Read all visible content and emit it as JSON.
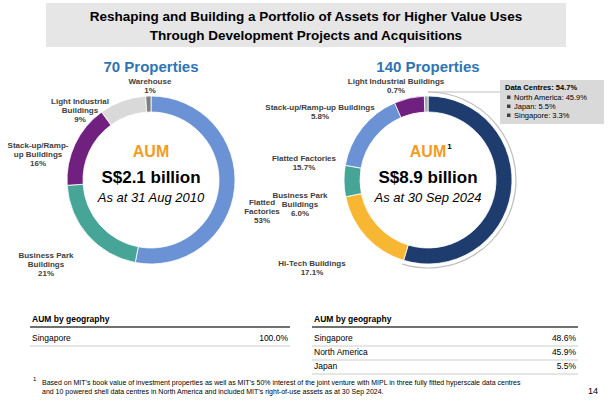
{
  "slide_title": [
    "Reshaping and Building a Portfolio of Assets for Higher Value Uses",
    "Through Development Projects and Acquisitions"
  ],
  "chart_data": [
    {
      "type": "donut",
      "title": "70 Properties",
      "center_title": "AUM",
      "center_value": "S$2.1 billion",
      "center_subtitle": "As at 31 Aug 2010",
      "categories": [
        "Flatted\nFactories",
        "Business Park\nBuildings",
        "Stack-up/Ramp-\nup Buildings",
        "Light Industrial\nBuildings",
        "Warehouse"
      ],
      "values": [
        53,
        21,
        16,
        9,
        1
      ],
      "value_labels": [
        "53%",
        "21%",
        "16%",
        "9%",
        "1%"
      ],
      "colors": [
        "#6b92d4",
        "#46a597",
        "#70217f",
        "#d9d9d9",
        "#7f7f7f"
      ],
      "data_labels": true
    },
    {
      "type": "donut",
      "title": "140 Properties",
      "center_title": "AUM",
      "center_title_note": "1",
      "center_value": "S$8.9 billion",
      "center_subtitle": "As at 30 Sep 2024",
      "categories": [
        null,
        "Hi-Tech Buildings",
        "Business Park\nBuildings",
        "Flatted Factories",
        "Stack-up/Ramp-up Buildings",
        "Light Industrial Buildings"
      ],
      "values": [
        54.7,
        17.1,
        6.0,
        15.7,
        5.8,
        0.7
      ],
      "value_labels": [
        null,
        "17.1%",
        "6.0%",
        "15.7%",
        "5.8%",
        "0.7%"
      ],
      "colors": [
        "#1f3c6e",
        "#f8b733",
        "#46a597",
        "#6b92d4",
        "#70217f",
        "#a6a6a6"
      ],
      "data_labels": true,
      "callout": {
        "title": "Data Centres: 54.7%",
        "items": [
          "North America: 45.9%",
          "Japan: 5.5%",
          "Singapore: 3.3%"
        ]
      }
    }
  ],
  "tables": [
    {
      "header": "AUM by geography",
      "rows": [
        [
          "Singapore",
          "100.0%"
        ]
      ]
    },
    {
      "header": "AUM by geography",
      "rows": [
        [
          "Singapore",
          "48.6%"
        ],
        [
          "North America",
          "45.9%"
        ],
        [
          "Japan",
          "5.5%"
        ]
      ]
    }
  ],
  "footnote": {
    "mark": "1",
    "lines": [
      "Based on MIT’s book value of investment properties as well as MIT’s 50% interest of the joint venture with MIPL in three fully fitted hyperscale data centres",
      "and 10 powered shell data centres in North America and included MIT’s right-of-use assets as at 30 Sep 2024."
    ]
  },
  "page_number": "14"
}
